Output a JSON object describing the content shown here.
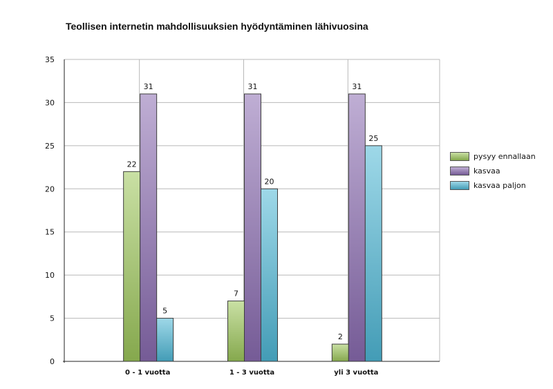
{
  "chart_data": {
    "type": "bar",
    "title": "Teollisen internetin mahdollisuuksien hyödyntäminen lähivuosina",
    "categories": [
      "0 - 1 vuotta",
      "1 - 3 vuotta",
      "yli 3 vuotta"
    ],
    "series": [
      {
        "name": "pysyy ennallaan",
        "values": [
          22,
          7,
          2
        ],
        "color": "#9dc65a"
      },
      {
        "name": "kasvaa",
        "values": [
          31,
          31,
          31
        ],
        "color": "#8a6bb0"
      },
      {
        "name": "kasvaa paljon",
        "values": [
          5,
          20,
          25
        ],
        "color": "#4fb8d6"
      }
    ],
    "ylim": [
      0,
      35
    ],
    "yticks": [
      0,
      5,
      10,
      15,
      20,
      25,
      30,
      35
    ],
    "grid": true,
    "legend_position": "right"
  }
}
